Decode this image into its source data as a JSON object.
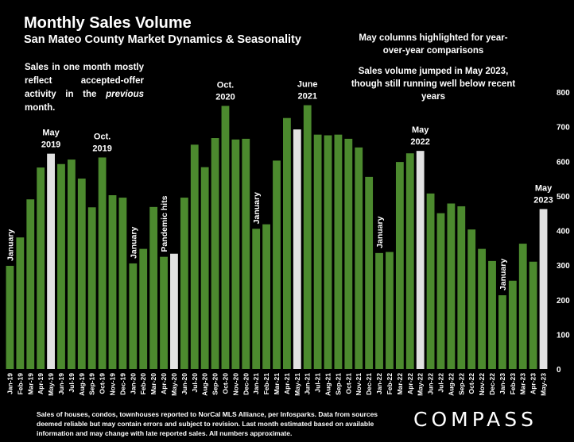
{
  "header": {
    "title": "Monthly Sales Volume",
    "subtitle": "San Mateo County Market Dynamics & Seasonality"
  },
  "notes": {
    "left_prefix": "Sales in one month mostly reflect accepted-offer activity in the ",
    "left_emphasis": "previous",
    "left_suffix": " month.",
    "right_top": "May columns highlighted for year-over-year comparisons",
    "right_bottom": "Sales volume jumped in May 2023, though still running well below recent years"
  },
  "footer": {
    "text": "Sales of houses, condos, townhouses reported to NorCal MLS Alliance, per Infosparks. Data from sources deemed reliable but may contain errors and subject to revision. Last month estimated based on available information and may change with late reported sales. All numbers approximate."
  },
  "logo": {
    "text": "COMPASS"
  },
  "colors": {
    "background": "#000000",
    "bar": "#4c8a2e",
    "highlight": "#e2e2e2",
    "text": "#ffffff"
  },
  "chart_data": {
    "type": "bar",
    "categories": [
      "Jan-19",
      "Feb-19",
      "Mar-19",
      "Apr-19",
      "May-19",
      "Jun-19",
      "Jul-19",
      "Aug-19",
      "Sep-19",
      "Oct-19",
      "Nov-19",
      "Dec-19",
      "Jan-20",
      "Feb-20",
      "Mar-20",
      "Apr-20",
      "May-20",
      "Jun-20",
      "Jul-20",
      "Aug-20",
      "Sep-20",
      "Oct-20",
      "Nov-20",
      "Dec-20",
      "Jan-21",
      "Feb-21",
      "Mar-21",
      "Apr-21",
      "May-21",
      "Jun-21",
      "Jul-21",
      "Aug-21",
      "Sep-21",
      "Oct-21",
      "Nov-21",
      "Dec-21",
      "Jan-22",
      "Feb-22",
      "Mar-22",
      "Apr-22",
      "May-22",
      "Jun-22",
      "Jul-22",
      "Aug-22",
      "Sep-22",
      "Oct-22",
      "Nov-22",
      "Dec-22",
      "Jan-23",
      "Feb-23",
      "Mar-23",
      "Apr-23",
      "May-23"
    ],
    "values": [
      298,
      380,
      490,
      582,
      622,
      592,
      605,
      550,
      467,
      611,
      502,
      495,
      305,
      347,
      468,
      324,
      333,
      495,
      648,
      583,
      667,
      760,
      663,
      665,
      405,
      418,
      602,
      725,
      692,
      762,
      677,
      675,
      677,
      665,
      640,
      555,
      335,
      338,
      598,
      623,
      630,
      507,
      450,
      478,
      470,
      403,
      347,
      312,
      213,
      255,
      362,
      310,
      462
    ],
    "highlighted": [
      "May-19",
      "May-20",
      "May-21",
      "May-22",
      "May-23"
    ],
    "ylim": [
      0,
      800
    ],
    "yticks": [
      0,
      100,
      200,
      300,
      400,
      500,
      600,
      700,
      800
    ],
    "y_axis_side": "right",
    "grid": false,
    "annotations": [
      {
        "category": "Jan-19",
        "text": "January",
        "vertical": true
      },
      {
        "category": "May-19",
        "lines": [
          "May",
          "2019"
        ]
      },
      {
        "category": "Oct-19",
        "lines": [
          "Oct.",
          "2019"
        ]
      },
      {
        "category": "Jan-20",
        "text": "January",
        "vertical": true
      },
      {
        "category": "Apr-20",
        "text": "Pandemic hits",
        "vertical": true
      },
      {
        "category": "Oct-20",
        "lines": [
          "Oct.",
          "2020"
        ]
      },
      {
        "category": "Jan-21",
        "text": "January",
        "vertical": true
      },
      {
        "category": "Jun-21",
        "lines": [
          "June",
          "2021"
        ]
      },
      {
        "category": "Jan-22",
        "text": "January",
        "vertical": true
      },
      {
        "category": "May-22",
        "lines": [
          "May",
          "2022"
        ]
      },
      {
        "category": "Jan-23",
        "text": "January",
        "vertical": true
      },
      {
        "category": "May-23",
        "lines": [
          "May",
          "2023"
        ]
      }
    ]
  }
}
